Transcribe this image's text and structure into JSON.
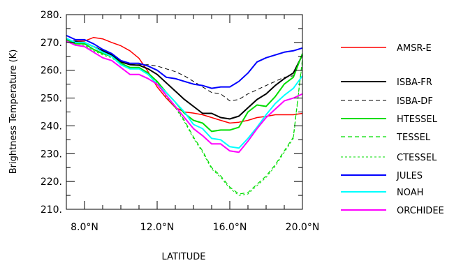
{
  "chart_data": {
    "type": "line",
    "xlabel": "LATITUDE",
    "ylabel": "Brightness Temperature (K)",
    "xlim": [
      7,
      20
    ],
    "ylim": [
      210,
      280
    ],
    "x_ticks": [
      {
        "value": 8,
        "label": "8.0°N"
      },
      {
        "value": 12,
        "label": "12.0°N"
      },
      {
        "value": 16,
        "label": "16.0°N"
      },
      {
        "value": 20,
        "label": "20.0°N"
      }
    ],
    "y_ticks": [
      {
        "value": 210,
        "label": "210."
      },
      {
        "value": 220,
        "label": "220."
      },
      {
        "value": 230,
        "label": "230."
      },
      {
        "value": 240,
        "label": "240."
      },
      {
        "value": 250,
        "label": "250."
      },
      {
        "value": 260,
        "label": "260."
      },
      {
        "value": 270,
        "label": "270."
      },
      {
        "value": 280,
        "label": "280."
      }
    ],
    "legend_position": "right",
    "x": [
      7,
      7.5,
      8,
      8.5,
      9,
      9.5,
      10,
      10.5,
      11,
      11.5,
      12,
      12.5,
      13,
      13.5,
      14,
      14.5,
      15,
      15.5,
      16,
      16.5,
      17,
      17.5,
      18,
      18.5,
      19,
      19.5,
      20
    ],
    "series": [
      {
        "name": "AMSR-E",
        "color": "#ff0000",
        "dash": "solid",
        "width": 1.5,
        "values": [
          270.5,
          270.5,
          270.5,
          271.8,
          271.3,
          270,
          268.8,
          267,
          264.3,
          259.5,
          254,
          250,
          246.6,
          245,
          244.6,
          244,
          243,
          242,
          241,
          241.3,
          242,
          243,
          243.4,
          244,
          244,
          244,
          244.5
        ]
      },
      {
        "name": "ISBA-FR",
        "color": "#000000",
        "dash": "solid",
        "width": 2,
        "values": [
          271,
          270.2,
          270,
          268.5,
          267,
          265.5,
          263,
          262,
          261.8,
          260.5,
          258.5,
          255.5,
          252.5,
          249.5,
          247,
          244.5,
          244.5,
          243,
          242.5,
          243.5,
          246.5,
          249.5,
          251.5,
          254.5,
          257,
          259,
          265.5
        ]
      },
      {
        "name": "ISBA-DF",
        "color": "#000000",
        "dash": "dashed",
        "width": 1,
        "values": [
          271,
          270.5,
          270,
          268.5,
          267,
          265.5,
          263,
          262,
          262,
          262,
          261.5,
          260.5,
          259.5,
          258,
          256,
          254,
          252,
          251.5,
          249,
          249.5,
          251.5,
          253,
          254.5,
          256,
          257.5,
          258,
          266
        ]
      },
      {
        "name": "HTESSEL",
        "color": "#00dd00",
        "dash": "solid",
        "width": 2,
        "values": [
          271,
          269.5,
          269.5,
          267.5,
          266,
          265,
          262.5,
          261,
          261,
          259,
          256,
          252,
          248.5,
          244.5,
          242,
          241,
          238,
          238.5,
          238.5,
          239.5,
          245,
          247.5,
          247,
          250.5,
          255,
          257.5,
          266
        ]
      },
      {
        "name": "TESSEL",
        "color": "#00dd00",
        "dash": "dashed",
        "width": 1.2,
        "values": [
          271,
          269.5,
          269.5,
          267.5,
          266,
          265,
          262.5,
          261,
          261,
          259,
          256,
          251,
          247,
          242,
          236,
          231,
          225,
          222,
          218,
          215.5,
          216,
          219,
          222,
          226,
          231,
          236,
          264
        ]
      },
      {
        "name": "CTESSEL",
        "color": "#00dd00",
        "dash": "dotted",
        "width": 1,
        "values": [
          270.5,
          269,
          269,
          267,
          265.5,
          264.5,
          262,
          260.5,
          260.5,
          258.5,
          255.5,
          250.5,
          246.5,
          241.5,
          235.5,
          230.5,
          224.5,
          221.5,
          217.5,
          215,
          215.5,
          218.5,
          221.5,
          225.5,
          230.5,
          235.5,
          263.5
        ]
      },
      {
        "name": "JULES",
        "color": "#0000ff",
        "dash": "solid",
        "width": 2,
        "values": [
          272.5,
          271,
          271,
          269.5,
          267.5,
          266,
          263.5,
          262.5,
          262.5,
          261.5,
          260,
          257.5,
          257,
          256,
          255,
          254.5,
          253.5,
          254,
          254,
          256,
          259,
          263,
          264.5,
          265.5,
          266.5,
          267,
          268
        ]
      },
      {
        "name": "NOAH",
        "color": "#00ffff",
        "dash": "solid",
        "width": 2,
        "values": [
          271.5,
          270,
          270,
          268.5,
          266.5,
          265,
          262,
          260.5,
          260.5,
          258.5,
          255,
          252,
          248.5,
          245,
          240.5,
          239,
          235.5,
          235,
          232.5,
          232,
          235.5,
          239.5,
          244,
          248,
          251,
          253.5,
          258
        ]
      },
      {
        "name": "ORCHIDEE",
        "color": "#ff00ff",
        "dash": "solid",
        "width": 2,
        "values": [
          270.5,
          269,
          268.5,
          266.5,
          264.5,
          263.5,
          261,
          258.5,
          258.5,
          257,
          255,
          251,
          247,
          243,
          239,
          236.5,
          233.5,
          233.5,
          231,
          230.5,
          234.5,
          239,
          243,
          246,
          249,
          250,
          251.5
        ]
      }
    ]
  }
}
